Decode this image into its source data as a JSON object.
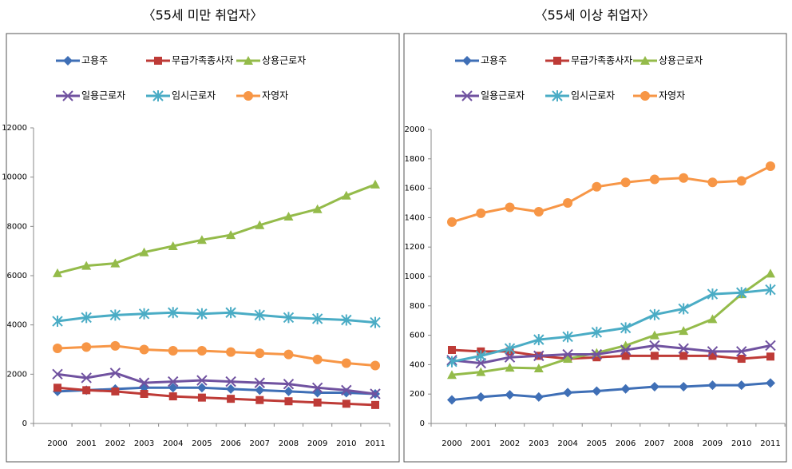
{
  "chart_data": [
    {
      "type": "line",
      "title": "〈55세 미만 취업자〉",
      "categories": [
        "2000",
        "2001",
        "2002",
        "2003",
        "2004",
        "2005",
        "2006",
        "2007",
        "2008",
        "2009",
        "2010",
        "2011"
      ],
      "ylim": [
        0,
        12000
      ],
      "yticks": [
        0,
        2000,
        4000,
        6000,
        8000,
        10000,
        12000
      ],
      "series": [
        {
          "name": "고용주",
          "color": "#3f6fb6",
          "marker": "diamond",
          "values": [
            1300,
            1350,
            1400,
            1450,
            1450,
            1450,
            1400,
            1350,
            1300,
            1250,
            1250,
            1200
          ]
        },
        {
          "name": "무급가족종사자",
          "color": "#be3b37",
          "marker": "square",
          "values": [
            1450,
            1350,
            1300,
            1200,
            1100,
            1050,
            1000,
            950,
            900,
            850,
            800,
            750
          ]
        },
        {
          "name": "상용근로자",
          "color": "#94bb4a",
          "marker": "triangle",
          "values": [
            6100,
            6400,
            6500,
            6950,
            7200,
            7450,
            7650,
            8050,
            8400,
            8700,
            9250,
            9700
          ]
        },
        {
          "name": "일용근로자",
          "color": "#7052a0",
          "marker": "x",
          "values": [
            2000,
            1850,
            2050,
            1650,
            1700,
            1750,
            1700,
            1650,
            1600,
            1450,
            1350,
            1200
          ]
        },
        {
          "name": "임시근로자",
          "color": "#4aacc5",
          "marker": "star",
          "values": [
            4150,
            4300,
            4400,
            4450,
            4500,
            4450,
            4500,
            4400,
            4300,
            4250,
            4200,
            4100
          ]
        },
        {
          "name": "자영자",
          "color": "#f79646",
          "marker": "circle",
          "values": [
            3050,
            3100,
            3150,
            3000,
            2950,
            2950,
            2900,
            2850,
            2800,
            2600,
            2450,
            2350
          ]
        }
      ]
    },
    {
      "type": "line",
      "title": "〈55세 이상 취업자〉",
      "categories": [
        "2000",
        "2001",
        "2002",
        "2003",
        "2004",
        "2005",
        "2006",
        "2007",
        "2008",
        "2009",
        "2010",
        "2011"
      ],
      "ylim": [
        0,
        2000
      ],
      "yticks": [
        0,
        200,
        400,
        600,
        800,
        1000,
        1200,
        1400,
        1600,
        1800,
        2000
      ],
      "series": [
        {
          "name": "고용주",
          "color": "#3f6fb6",
          "marker": "diamond",
          "values": [
            160,
            180,
            195,
            180,
            210,
            220,
            235,
            250,
            250,
            260,
            260,
            275
          ]
        },
        {
          "name": "무급가족종사자",
          "color": "#be3b37",
          "marker": "square",
          "values": [
            500,
            490,
            490,
            460,
            440,
            450,
            460,
            460,
            460,
            460,
            440,
            455
          ]
        },
        {
          "name": "상용근로자",
          "color": "#94bb4a",
          "marker": "triangle",
          "values": [
            330,
            350,
            380,
            375,
            440,
            480,
            530,
            600,
            630,
            710,
            880,
            1020
          ]
        },
        {
          "name": "일용근로자",
          "color": "#7052a0",
          "marker": "x",
          "values": [
            430,
            410,
            450,
            460,
            470,
            470,
            500,
            530,
            510,
            490,
            490,
            530
          ]
        },
        {
          "name": "임시근로자",
          "color": "#4aacc5",
          "marker": "star",
          "values": [
            420,
            460,
            510,
            570,
            590,
            620,
            650,
            740,
            780,
            880,
            890,
            910
          ]
        },
        {
          "name": "자영자",
          "color": "#f79646",
          "marker": "circle",
          "values": [
            1370,
            1430,
            1470,
            1440,
            1500,
            1610,
            1640,
            1660,
            1670,
            1640,
            1650,
            1750
          ]
        }
      ]
    }
  ]
}
